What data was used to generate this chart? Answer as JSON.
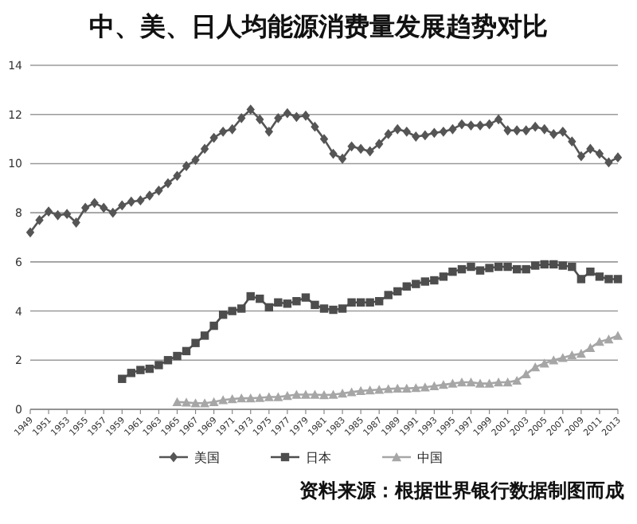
{
  "chart_data": {
    "type": "line",
    "title": "中、美、日人均能源消费量发展趋势对比",
    "annotations": [
      "资料来源：根据世界银行数据制图而成"
    ],
    "x": [
      1949,
      1950,
      1951,
      1952,
      1953,
      1954,
      1955,
      1956,
      1957,
      1958,
      1959,
      1960,
      1961,
      1962,
      1963,
      1964,
      1965,
      1966,
      1967,
      1968,
      1969,
      1970,
      1971,
      1972,
      1973,
      1974,
      1975,
      1976,
      1977,
      1978,
      1979,
      1980,
      1981,
      1982,
      1983,
      1984,
      1985,
      1986,
      1987,
      1988,
      1989,
      1990,
      1991,
      1992,
      1993,
      1994,
      1995,
      1996,
      1997,
      1998,
      1999,
      2000,
      2001,
      2002,
      2003,
      2004,
      2005,
      2006,
      2007,
      2008,
      2009,
      2010,
      2011,
      2012,
      2013
    ],
    "xlim": [
      1949,
      2013
    ],
    "xticks": [
      1949,
      1951,
      1953,
      1955,
      1957,
      1959,
      1961,
      1963,
      1965,
      1967,
      1969,
      1971,
      1973,
      1975,
      1977,
      1979,
      1981,
      1983,
      1985,
      1987,
      1989,
      1991,
      1993,
      1995,
      1997,
      1999,
      2001,
      2003,
      2005,
      2007,
      2009,
      2011,
      2013
    ],
    "ylim": [
      0,
      14
    ],
    "yticks": [
      0,
      2,
      4,
      6,
      8,
      10,
      12,
      14
    ],
    "grid": "y",
    "legend": "bottom",
    "series": [
      {
        "name": "美国",
        "color": "#555555",
        "marker": "diamond",
        "values": [
          7.2,
          7.7,
          8.05,
          7.9,
          7.95,
          7.6,
          8.2,
          8.4,
          8.2,
          8.0,
          8.3,
          8.45,
          8.5,
          8.7,
          8.9,
          9.2,
          9.5,
          9.9,
          10.15,
          10.6,
          11.05,
          11.3,
          11.4,
          11.85,
          12.2,
          11.8,
          11.3,
          11.85,
          12.05,
          11.9,
          11.95,
          11.5,
          11.0,
          10.4,
          10.2,
          10.7,
          10.6,
          10.5,
          10.8,
          11.2,
          11.4,
          11.3,
          11.1,
          11.15,
          11.25,
          11.3,
          11.4,
          11.6,
          11.55,
          11.55,
          11.6,
          11.8,
          11.35,
          11.35,
          11.35,
          11.5,
          11.4,
          11.2,
          11.3,
          10.9,
          10.3,
          10.6,
          10.4,
          10.05,
          10.25
        ]
      },
      {
        "name": "日本",
        "color": "#4d4d4d",
        "marker": "square",
        "values": [
          null,
          null,
          null,
          null,
          null,
          null,
          null,
          null,
          null,
          null,
          1.24,
          1.48,
          1.6,
          1.65,
          1.8,
          2.0,
          2.17,
          2.37,
          2.7,
          3.0,
          3.4,
          3.85,
          4.0,
          4.1,
          4.6,
          4.5,
          4.15,
          4.35,
          4.3,
          4.4,
          4.55,
          4.25,
          4.1,
          4.05,
          4.1,
          4.35,
          4.35,
          4.35,
          4.4,
          4.65,
          4.8,
          5.0,
          5.1,
          5.2,
          5.25,
          5.4,
          5.6,
          5.7,
          5.8,
          5.65,
          5.75,
          5.8,
          5.8,
          5.7,
          5.7,
          5.85,
          5.9,
          5.9,
          5.85,
          5.8,
          5.3,
          5.6,
          5.4,
          5.3,
          5.3
        ]
      },
      {
        "name": "中国",
        "color": "#a6a6a6",
        "marker": "triangle",
        "values": [
          null,
          null,
          null,
          null,
          null,
          null,
          null,
          null,
          null,
          null,
          null,
          null,
          null,
          null,
          null,
          null,
          0.3,
          0.28,
          0.25,
          0.25,
          0.3,
          0.38,
          0.42,
          0.45,
          0.45,
          0.47,
          0.5,
          0.5,
          0.55,
          0.6,
          0.6,
          0.6,
          0.58,
          0.6,
          0.65,
          0.7,
          0.75,
          0.78,
          0.8,
          0.83,
          0.85,
          0.85,
          0.87,
          0.9,
          0.95,
          1.0,
          1.05,
          1.1,
          1.1,
          1.05,
          1.05,
          1.1,
          1.1,
          1.17,
          1.43,
          1.72,
          1.87,
          2.0,
          2.1,
          2.2,
          2.27,
          2.5,
          2.75,
          2.85,
          3.0
        ]
      }
    ]
  }
}
